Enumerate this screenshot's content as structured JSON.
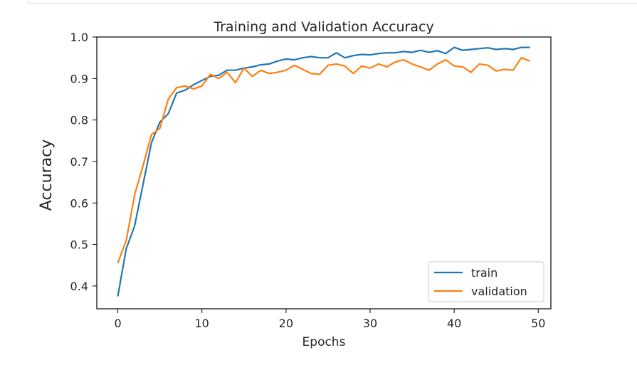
{
  "chart_data": {
    "type": "line",
    "title": "Training and Validation Accuracy",
    "xlabel": "Epochs",
    "ylabel": "Accuracy",
    "xlim": [
      -2.5,
      51.5
    ],
    "ylim": [
      0.345,
      1.0
    ],
    "xticks": [
      0,
      10,
      20,
      30,
      40,
      50
    ],
    "yticks": [
      0.4,
      0.5,
      0.6,
      0.7,
      0.8,
      0.9,
      1.0
    ],
    "grid": false,
    "legend_position": "lower-right",
    "x": [
      0,
      1,
      2,
      3,
      4,
      5,
      6,
      7,
      8,
      9,
      10,
      11,
      12,
      13,
      14,
      15,
      16,
      17,
      18,
      19,
      20,
      21,
      22,
      23,
      24,
      25,
      26,
      27,
      28,
      29,
      30,
      31,
      32,
      33,
      34,
      35,
      36,
      37,
      38,
      39,
      40,
      41,
      42,
      43,
      44,
      45,
      46,
      47,
      48,
      49
    ],
    "series": [
      {
        "name": "train",
        "color": "#1f77b4",
        "values": [
          0.375,
          0.49,
          0.545,
          0.645,
          0.745,
          0.795,
          0.815,
          0.865,
          0.872,
          0.885,
          0.895,
          0.905,
          0.908,
          0.92,
          0.92,
          0.925,
          0.928,
          0.933,
          0.935,
          0.942,
          0.947,
          0.945,
          0.95,
          0.953,
          0.95,
          0.95,
          0.962,
          0.95,
          0.955,
          0.958,
          0.957,
          0.96,
          0.962,
          0.962,
          0.965,
          0.963,
          0.968,
          0.963,
          0.967,
          0.96,
          0.975,
          0.968,
          0.97,
          0.972,
          0.974,
          0.97,
          0.972,
          0.97,
          0.975,
          0.975
        ]
      },
      {
        "name": "validation",
        "color": "#ff7f0e",
        "values": [
          0.455,
          0.51,
          0.62,
          0.69,
          0.765,
          0.78,
          0.85,
          0.878,
          0.882,
          0.875,
          0.882,
          0.91,
          0.9,
          0.915,
          0.89,
          0.925,
          0.905,
          0.92,
          0.912,
          0.915,
          0.92,
          0.932,
          0.922,
          0.912,
          0.91,
          0.932,
          0.935,
          0.93,
          0.912,
          0.93,
          0.925,
          0.935,
          0.928,
          0.94,
          0.945,
          0.935,
          0.928,
          0.92,
          0.935,
          0.945,
          0.93,
          0.928,
          0.915,
          0.935,
          0.932,
          0.918,
          0.922,
          0.92,
          0.95,
          0.942
        ]
      }
    ]
  }
}
